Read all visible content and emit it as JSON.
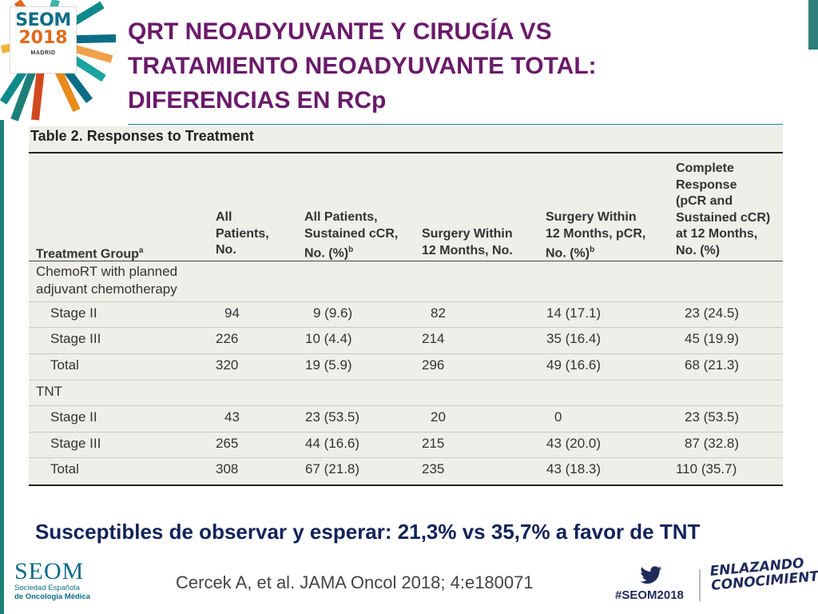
{
  "logo": {
    "name": "SEOM",
    "year": "2018",
    "city": "MADRID"
  },
  "title_lines": [
    "QRT NEOADYUVANTE Y CIRUGÍA VS",
    "TRATAMIENTO NEOADYUVANTE TOTAL:",
    "DIFERENCIAS EN RCp"
  ],
  "table": {
    "caption": "Table 2. Responses to Treatment",
    "headers": {
      "group": "Treatment Group",
      "group_sup": "a",
      "all_patients": "All\nPatients,\nNo.",
      "sustained_ccr": "All Patients,\nSustained cCR,\nNo. (%)",
      "sustained_ccr_sup": "b",
      "surgery_12m": "Surgery Within\n12 Months, No.",
      "surgery_pcr": "Surgery Within\n12 Months, pCR,\nNo. (%)",
      "surgery_pcr_sup": "b",
      "complete_response": "Complete\nResponse\n(pCR and\nSustained cCR)\nat 12 Months,\nNo. (%)"
    },
    "groups": [
      {
        "label_line1": "ChemoRT with planned",
        "label_line2": "adjuvant chemotherapy",
        "rows": [
          [
            "Stage II",
            "94",
            "9 (9.6)",
            "82",
            "14 (17.1)",
            "23 (24.5)"
          ],
          [
            "Stage III",
            "226",
            "10 (4.4)",
            "214",
            "35 (16.4)",
            "45 (19.9)"
          ],
          [
            "Total",
            "320",
            "19 (5.9)",
            "296",
            "49 (16.6)",
            "68 (21.3)"
          ]
        ]
      },
      {
        "label_line1": "TNT",
        "label_line2": "",
        "rows": [
          [
            "Stage II",
            "43",
            "23 (53.5)",
            "20",
            "0",
            "23 (53.5)"
          ],
          [
            "Stage III",
            "265",
            "44 (16.6)",
            "215",
            "43 (20.0)",
            "87 (32.8)"
          ],
          [
            "Total",
            "308",
            "67 (21.8)",
            "235",
            "43 (18.3)",
            "110 (35.7)"
          ]
        ]
      }
    ]
  },
  "conclusion": "Susceptibles de observar y esperar: 21,3% vs 35,7% a favor de TNT",
  "footer": {
    "seom_word": "SEOM",
    "seom_sub1": "Sociedad Española",
    "seom_sub2": "de Oncología Médica",
    "citation": "Cercek A, et al. JAMA Oncol 2018; 4:e180071",
    "hashtag": "#SEOM2018",
    "slogan_line1": "ENLAZANDO",
    "slogan_line2": "CONOCIMIENTO"
  },
  "colors": {
    "title": "#6a1a6a",
    "conclusion": "#12235a",
    "accent": "#1e7f7a",
    "table_bg": "#efeee9"
  }
}
